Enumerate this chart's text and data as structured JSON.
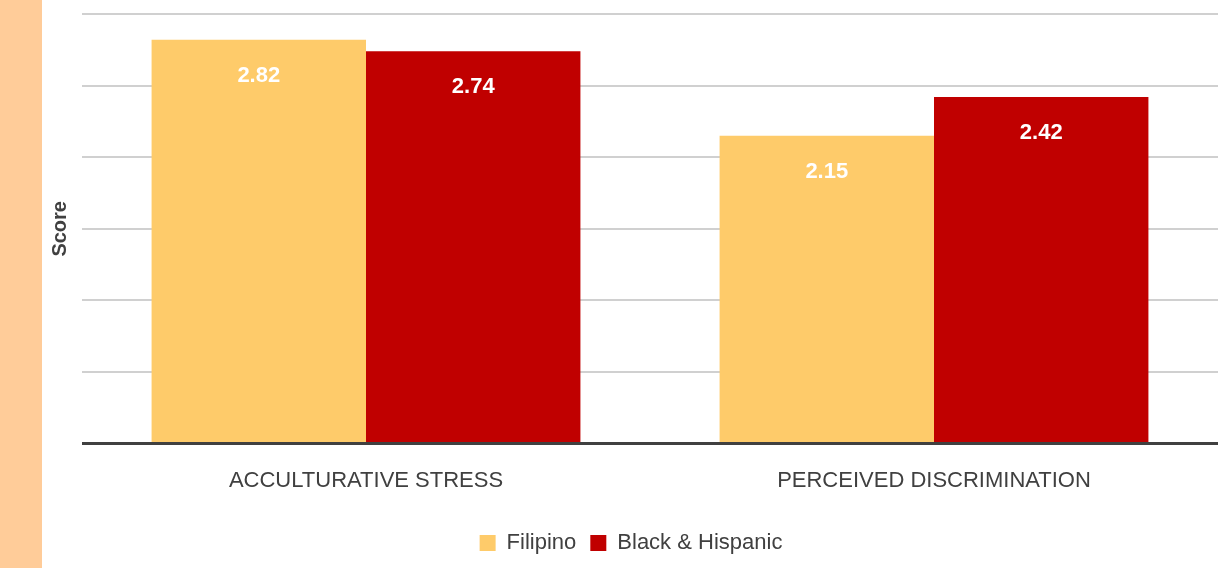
{
  "chart_data": {
    "type": "bar",
    "ylabel": "Score",
    "categories": [
      "ACCULTURATIVE STRESS",
      "PERCEIVED DISCRIMINATION"
    ],
    "series": [
      {
        "name": "Filipino",
        "color": "#fecb6a",
        "values": [
          2.82,
          2.15
        ]
      },
      {
        "name": "Black & Hispanic",
        "color": "#c00000",
        "values": [
          2.74,
          2.42
        ]
      }
    ],
    "ylim": [
      0,
      3
    ],
    "yticks": [
      {
        "value": 0,
        "label": null
      },
      {
        "value": 0.5,
        "label": null
      },
      {
        "value": 1,
        "label": null
      },
      {
        "value": 1.5,
        "label": null
      },
      {
        "value": 2,
        "label": null
      },
      {
        "value": 2.5,
        "label": null
      },
      {
        "value": 3,
        "label": null
      }
    ],
    "tick_labels": "x",
    "grid": "y",
    "legend": "bottom",
    "data_labels": true
  }
}
